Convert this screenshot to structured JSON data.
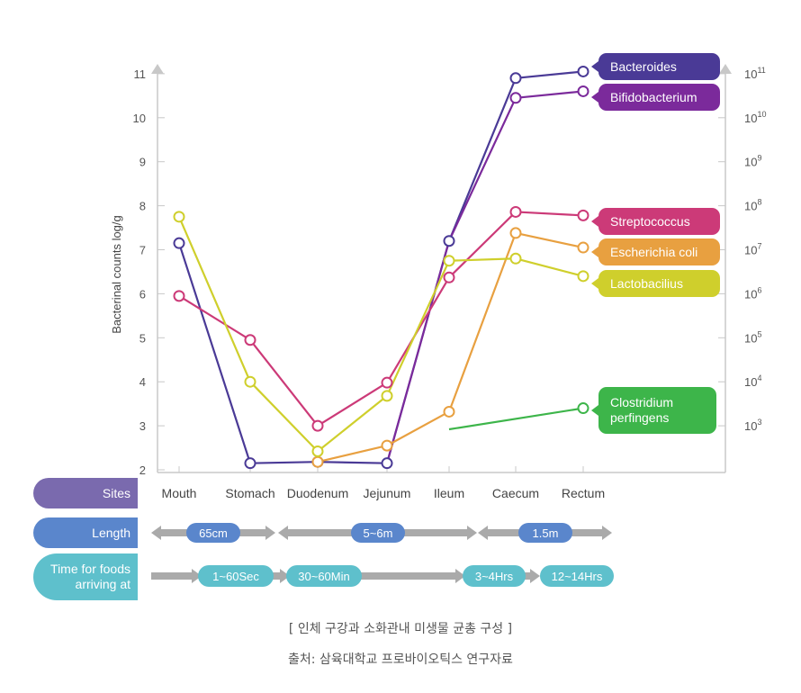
{
  "chart_data": {
    "type": "line",
    "ylabel": "Bacterinal counts log/g",
    "ylim": [
      2,
      11
    ],
    "y_ticks": [
      "2",
      "3",
      "4",
      "5",
      "6",
      "7",
      "8",
      "9",
      "10",
      "11"
    ],
    "y2_ticks": [
      {
        "base": "10",
        "exp": "3"
      },
      {
        "base": "10",
        "exp": "4"
      },
      {
        "base": "10",
        "exp": "5"
      },
      {
        "base": "10",
        "exp": "6"
      },
      {
        "base": "10",
        "exp": "7"
      },
      {
        "base": "10",
        "exp": "8"
      },
      {
        "base": "10",
        "exp": "9"
      },
      {
        "base": "10",
        "exp": "10"
      },
      {
        "base": "10",
        "exp": "11"
      }
    ],
    "categories": [
      "Mouth",
      "Stomach",
      "Duodenum",
      "Jejunum",
      "Ileum",
      "Caecum",
      "Rectum"
    ],
    "series": [
      {
        "name": "Bacteroides",
        "color": "#4a3a96",
        "values": [
          7.15,
          2.15,
          2.18,
          2.15,
          7.2,
          10.9,
          11.05
        ]
      },
      {
        "name": "Bifidobacterium",
        "color": "#7b2a9b",
        "values": [
          null,
          null,
          null,
          2.15,
          7.2,
          10.45,
          10.6
        ]
      },
      {
        "name": "Streptococcus",
        "color": "#cc3a78",
        "values": [
          5.95,
          4.95,
          3.0,
          3.98,
          6.37,
          7.86,
          7.78
        ]
      },
      {
        "name": "Escherichia coli",
        "color": "#e8a040",
        "values": [
          null,
          null,
          2.18,
          2.55,
          3.32,
          7.38,
          7.05
        ]
      },
      {
        "name": "Lactobacilius",
        "color": "#cfcf2c",
        "values": [
          7.75,
          4.0,
          2.42,
          3.68,
          6.75,
          6.8,
          6.4
        ]
      },
      {
        "name": "Clostridium perfingens",
        "color": "#3db54a",
        "values": [
          null,
          null,
          null,
          null,
          2.92,
          null,
          3.4
        ]
      }
    ],
    "legend_labels": [
      {
        "lines": [
          "Bacteroides"
        ],
        "color": "#4a3a96"
      },
      {
        "lines": [
          "Bifidobacterium"
        ],
        "color": "#7b2a9b"
      },
      {
        "lines": [
          "Streptococcus"
        ],
        "color": "#cc3a78"
      },
      {
        "lines": [
          "Escherichia coli"
        ],
        "color": "#e8a040"
      },
      {
        "lines": [
          "Lactobacilius"
        ],
        "color": "#cfcf2c"
      },
      {
        "lines": [
          "Clostridium",
          "perfingens"
        ],
        "color": "#3db54a"
      }
    ]
  },
  "rows": {
    "sites": {
      "label": "Sites",
      "color": "#7a6aae"
    },
    "length": {
      "label": "Length",
      "color": "#5a86cc",
      "segments": [
        "65cm",
        "5~6m",
        "1.5m"
      ]
    },
    "time": {
      "label_lines": [
        "Time for foods",
        "arriving at"
      ],
      "color": "#5ec0cc",
      "segments": [
        "1~60Sec",
        "30~60Min",
        "3~4Hrs",
        "12~14Hrs"
      ]
    }
  },
  "captions": {
    "title": "[ 인체 구강과 소화관내 미생물 균총 구성 ]",
    "source": "출처: 삼육대학교 프로바이오틱스 연구자료"
  }
}
